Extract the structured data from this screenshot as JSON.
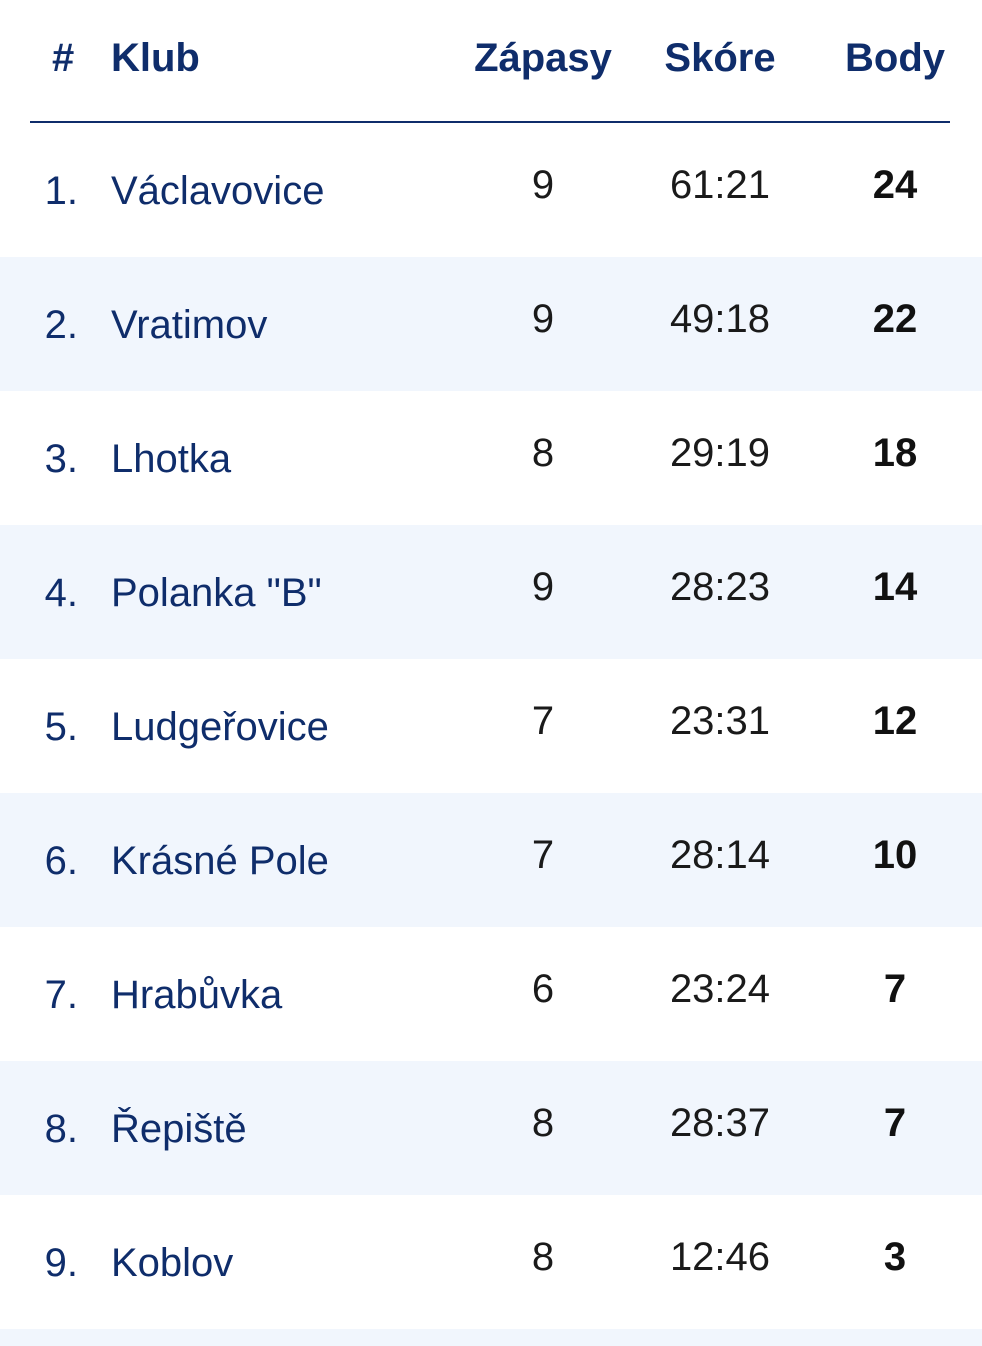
{
  "header": {
    "rank": "#",
    "club": "Klub",
    "matches": "Zápasy",
    "score": "Skóre",
    "points": "Body"
  },
  "rows": [
    {
      "rank": "1.",
      "club": "Václavovice",
      "matches": "9",
      "score": "61:21",
      "points": "24"
    },
    {
      "rank": "2.",
      "club": "Vratimov",
      "matches": "9",
      "score": "49:18",
      "points": "22"
    },
    {
      "rank": "3.",
      "club": "Lhotka",
      "matches": "8",
      "score": "29:19",
      "points": "18"
    },
    {
      "rank": "4.",
      "club": "Polanka \"B\"",
      "matches": "9",
      "score": "28:23",
      "points": "14"
    },
    {
      "rank": "5.",
      "club": "Ludgeřovice",
      "matches": "7",
      "score": "23:31",
      "points": "12"
    },
    {
      "rank": "6.",
      "club": "Krásné Pole",
      "matches": "7",
      "score": "28:14",
      "points": "10"
    },
    {
      "rank": "7.",
      "club": "Hrabůvka",
      "matches": "6",
      "score": "23:24",
      "points": "7"
    },
    {
      "rank": "8.",
      "club": "Řepiště",
      "matches": "8",
      "score": "28:37",
      "points": "7"
    },
    {
      "rank": "9.",
      "club": "Koblov",
      "matches": "8",
      "score": "12:46",
      "points": "3"
    }
  ],
  "colors": {
    "header_text": "#0f2d6b",
    "alt_row_background": "#f1f6fd",
    "divider": "#0f2d6b"
  }
}
